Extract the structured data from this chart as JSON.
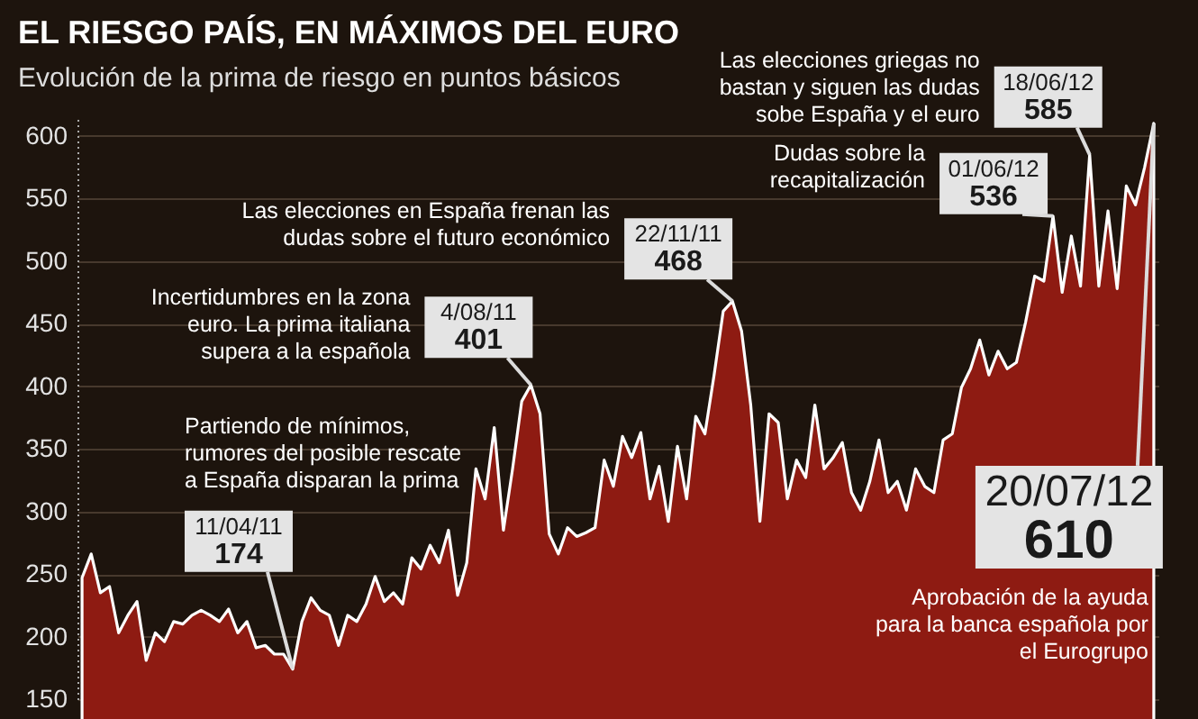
{
  "chart_data": {
    "type": "area",
    "title": "EL RIESGO PAÍS, EN MÁXIMOS DEL EURO",
    "subtitle": "Evolución de la prima de riesgo en puntos básicos",
    "categories": [
      null,
      null,
      null,
      null,
      null,
      null,
      null,
      null,
      null,
      null,
      null,
      null,
      null,
      null,
      null,
      null,
      null,
      null,
      null,
      null,
      null,
      null,
      null,
      null,
      null,
      null,
      null,
      null,
      null,
      null,
      null,
      null,
      null,
      null,
      null,
      null,
      null,
      null,
      null,
      null,
      null,
      null,
      null,
      null,
      null,
      null,
      null,
      null,
      null,
      null,
      null,
      null,
      null,
      null,
      null,
      null,
      null,
      null,
      null,
      null,
      null,
      null,
      null,
      null,
      null,
      null,
      null,
      null,
      null,
      null,
      null,
      null,
      null,
      null,
      null,
      null,
      null,
      null,
      null,
      null,
      null,
      null,
      null,
      null,
      null,
      null,
      null,
      null,
      null,
      null,
      null,
      null,
      null,
      null,
      null,
      null,
      null,
      null,
      null,
      null,
      null,
      null,
      null,
      null,
      null,
      null,
      null,
      null,
      null,
      null,
      null,
      null,
      null,
      null,
      null,
      null,
      null,
      null
    ],
    "series": [
      {
        "color": "#8e1b12",
        "values": [
          247,
          266,
          235,
          240,
          203,
          217,
          228,
          181,
          203,
          196,
          212,
          210,
          217,
          221,
          217,
          212,
          222,
          203,
          212,
          191,
          193,
          186,
          186,
          174,
          212,
          231,
          221,
          217,
          193,
          217,
          212,
          226,
          248,
          228,
          235,
          226,
          263,
          254,
          273,
          259,
          285,
          233,
          259,
          334,
          310,
          367,
          285,
          334,
          388,
          401,
          378,
          282,
          266,
          287,
          280,
          283,
          287,
          341,
          320,
          360,
          343,
          363,
          310,
          336,
          292,
          352,
          310,
          376,
          362,
          409,
          460,
          468,
          444,
          385,
          292,
          378,
          371,
          310,
          341,
          327,
          385,
          334,
          343,
          355,
          315,
          301,
          324,
          357,
          315,
          324,
          301,
          334,
          320,
          315,
          357,
          362,
          399,
          414,
          437,
          409,
          428,
          414,
          419,
          451,
          488,
          484,
          536,
          475,
          520,
          480,
          585,
          480,
          540,
          478,
          560,
          545,
          575,
          610
        ],
        "value_labels": [
          null,
          null,
          null,
          null,
          null,
          null,
          null,
          null,
          null,
          null,
          null,
          null,
          null,
          null,
          null,
          null,
          null,
          null,
          null,
          null,
          null,
          null,
          null,
          "174",
          null,
          null,
          null,
          null,
          null,
          null,
          null,
          null,
          null,
          null,
          null,
          null,
          null,
          null,
          null,
          null,
          null,
          null,
          null,
          null,
          null,
          null,
          null,
          null,
          null,
          "401",
          null,
          null,
          null,
          null,
          null,
          null,
          null,
          null,
          null,
          null,
          null,
          null,
          null,
          null,
          null,
          null,
          null,
          null,
          null,
          null,
          null,
          "468",
          null,
          null,
          null,
          null,
          null,
          null,
          null,
          null,
          null,
          null,
          null,
          null,
          null,
          null,
          null,
          null,
          null,
          null,
          null,
          null,
          null,
          null,
          null,
          null,
          null,
          null,
          null,
          null,
          null,
          null,
          null,
          null,
          null,
          null,
          "536",
          null,
          null,
          null,
          "585",
          null,
          null,
          null,
          null,
          null,
          null,
          "610"
        ]
      }
    ],
    "ylim": [
      150,
      615
    ],
    "yticks": [
      150,
      200,
      250,
      300,
      350,
      400,
      450,
      500,
      550,
      600
    ],
    "grid": "y",
    "tick_labels": "y",
    "annotations": [
      "11/04/11",
      "Partiendo de mínimos, rumores del posible rescate a España disparan la prima",
      "4/08/11",
      "Incertidumbres en la zona euro. La prima italiana supera a la española",
      "22/11/11",
      "Las elecciones en España frenan las dudas sobre el futuro económico",
      "01/06/12",
      "Dudas sobre la recapitalización",
      "18/06/12",
      "Las elecciones griegas no bastan y siguen las dudas sobe España y el euro",
      "20/07/12",
      "Aprobación de la ayuda para la banca española por el Eurogrupo"
    ]
  }
}
